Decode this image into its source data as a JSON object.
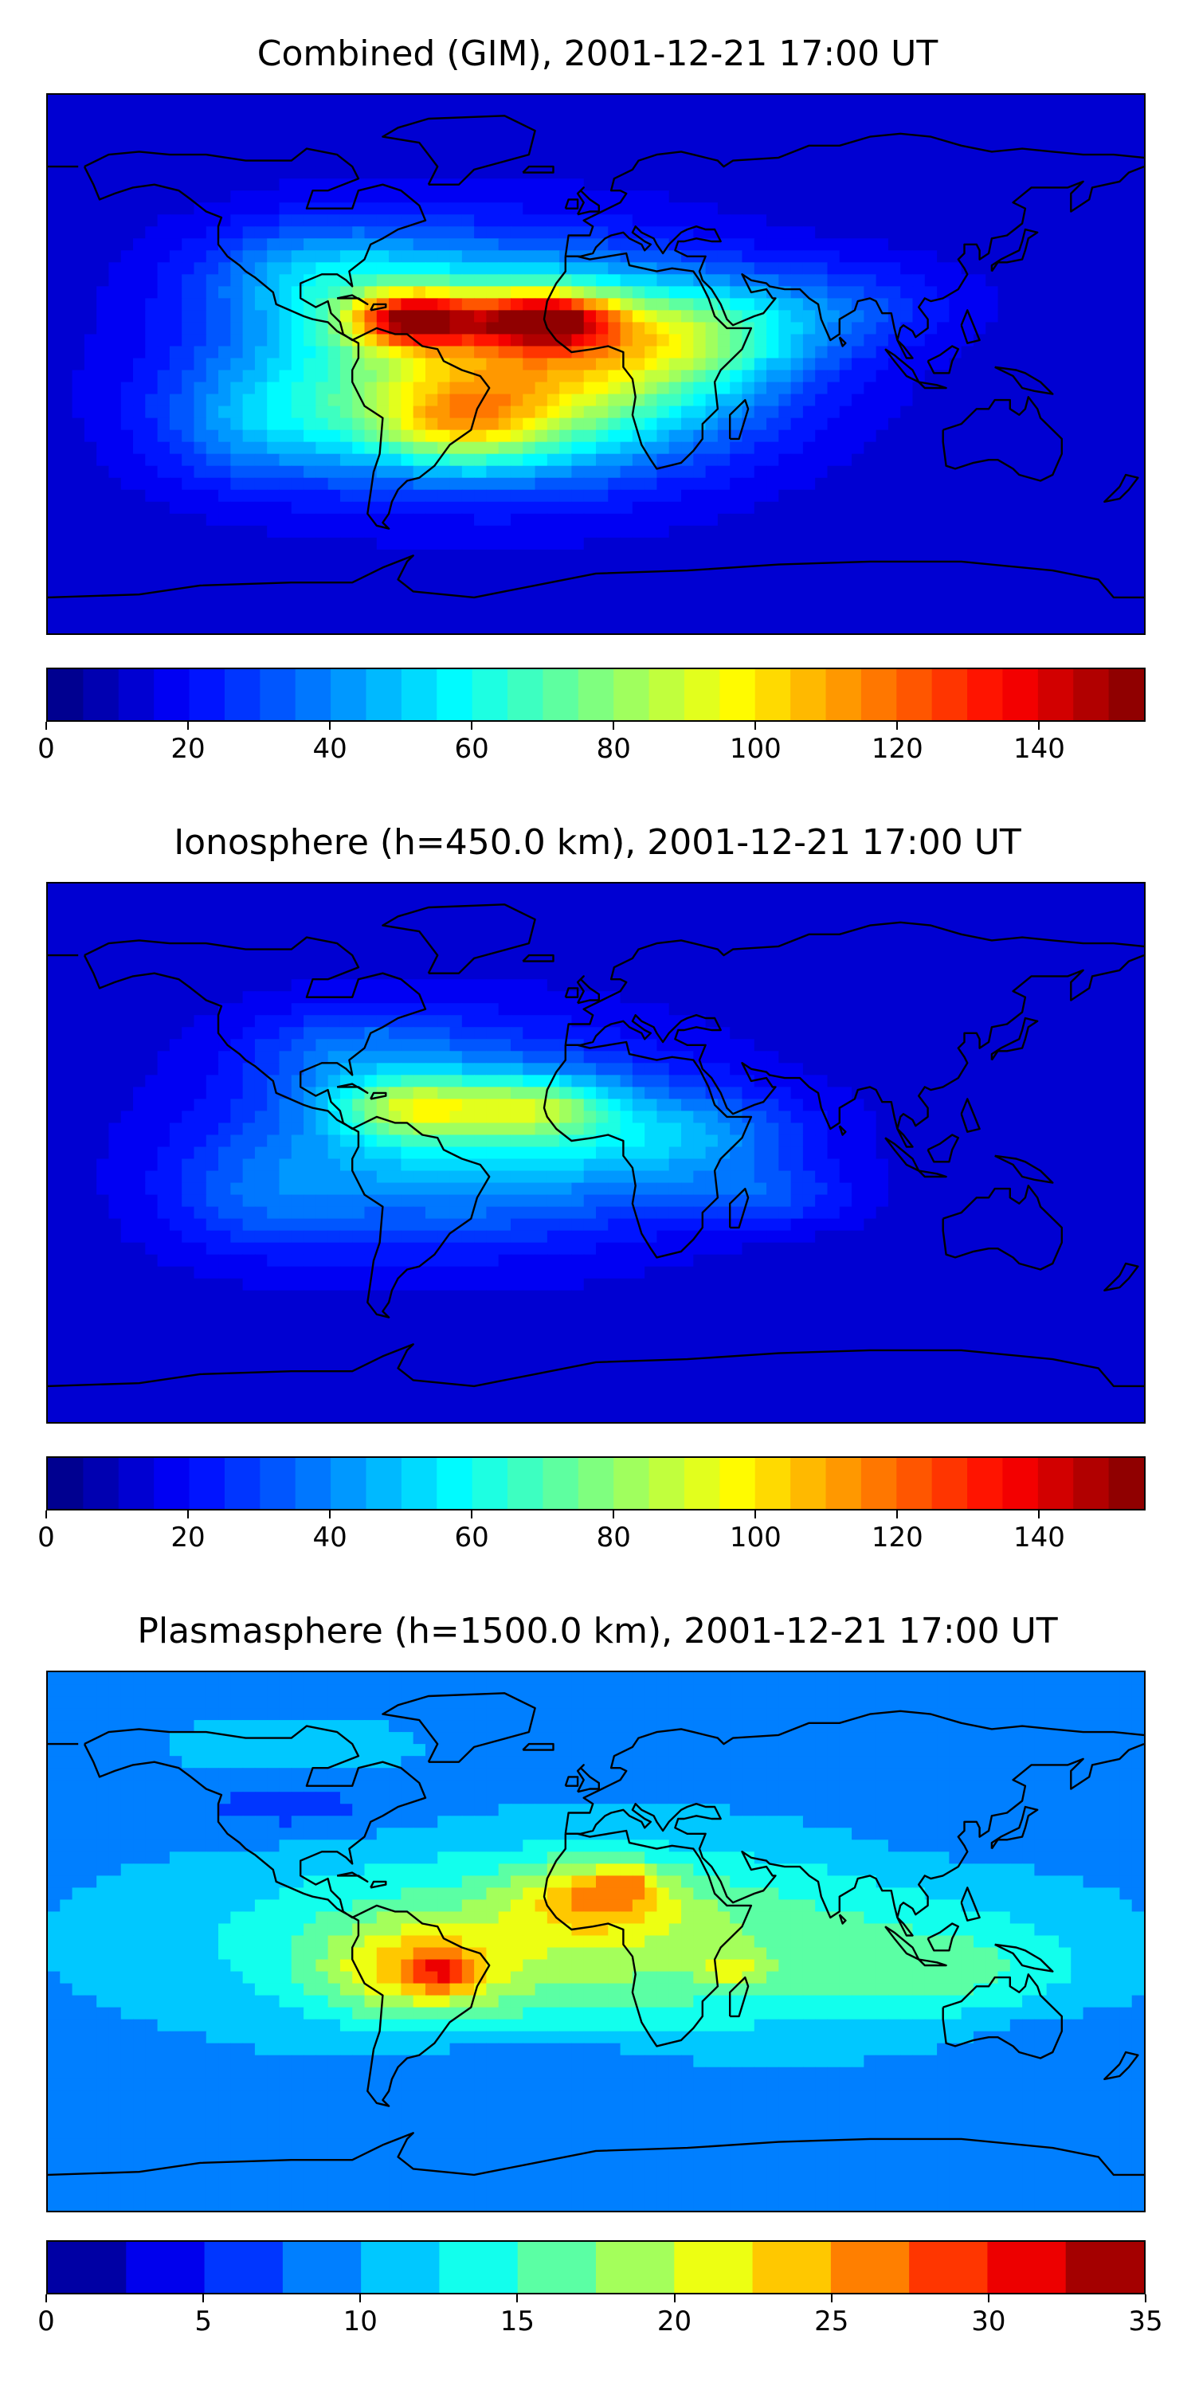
{
  "panels": [
    {
      "title": "Combined (GIM), 2001-12-21 17:00 UT",
      "colorbar": {
        "min": 0,
        "max": 155,
        "step": 5,
        "ticks": [
          "0",
          "20",
          "40",
          "60",
          "80",
          "100",
          "120",
          "140"
        ],
        "tick_values": [
          0,
          20,
          40,
          60,
          80,
          100,
          120,
          140
        ]
      },
      "field": {
        "background": 12,
        "blobs": [
          {
            "lon": -45,
            "lat": 0,
            "value": 58,
            "rlon": 70,
            "rlat": 35
          },
          {
            "lon": 0,
            "lat": 0,
            "value": 45,
            "rlon": 60,
            "rlat": 30
          },
          {
            "lon": -60,
            "lat": 15,
            "value": 85,
            "rlon": 20,
            "rlat": 9
          },
          {
            "lon": -18,
            "lat": 15,
            "value": 80,
            "rlon": 22,
            "rlat": 9
          },
          {
            "lon": -45,
            "lat": -20,
            "value": 42,
            "rlon": 30,
            "rlat": 14
          },
          {
            "lon": -90,
            "lat": 30,
            "value": 25,
            "rlon": 40,
            "rlat": 18
          },
          {
            "lon": 30,
            "lat": 10,
            "value": 30,
            "rlon": 40,
            "rlat": 15
          },
          {
            "lon": -110,
            "lat": -20,
            "value": 22,
            "rlon": 35,
            "rlat": 20
          },
          {
            "lon": 80,
            "lat": 20,
            "value": 15,
            "rlon": 40,
            "rlat": 15
          }
        ]
      }
    },
    {
      "title": "Ionosphere  (h=450.0 km), 2001-12-21 17:00 UT",
      "colorbar": {
        "min": 0,
        "max": 155,
        "step": 5,
        "ticks": [
          "0",
          "20",
          "40",
          "60",
          "80",
          "100",
          "120",
          "140"
        ],
        "tick_values": [
          0,
          20,
          40,
          60,
          80,
          100,
          120,
          140
        ]
      },
      "field": {
        "background": 12,
        "blobs": [
          {
            "lon": -40,
            "lat": 5,
            "value": 42,
            "rlon": 70,
            "rlat": 32
          },
          {
            "lon": -60,
            "lat": 15,
            "value": 45,
            "rlon": 25,
            "rlat": 10
          },
          {
            "lon": -20,
            "lat": 15,
            "value": 38,
            "rlon": 25,
            "rlat": 10
          },
          {
            "lon": -80,
            "lat": 35,
            "value": 15,
            "rlon": 35,
            "rlat": 15
          },
          {
            "lon": 30,
            "lat": 5,
            "value": 22,
            "rlon": 40,
            "rlat": 15
          },
          {
            "lon": 55,
            "lat": -15,
            "value": 15,
            "rlon": 30,
            "rlat": 10
          },
          {
            "lon": -110,
            "lat": -15,
            "value": 15,
            "rlon": 35,
            "rlat": 20
          }
        ]
      }
    },
    {
      "title": "Plasmasphere (h=1500.0 km), 2001-12-21 17:00 UT",
      "colorbar": {
        "min": 0,
        "max": 35,
        "step": 2.5,
        "ticks": [
          "0",
          "5",
          "10",
          "15",
          "20",
          "25",
          "30",
          "35"
        ],
        "tick_values": [
          0,
          5,
          10,
          15,
          20,
          25,
          30,
          35
        ]
      },
      "field": {
        "background": 9,
        "blobs": [
          {
            "lon": 0,
            "lat": 0,
            "value": 10,
            "rlon": 120,
            "rlat": 30
          },
          {
            "lon": -60,
            "lat": -10,
            "value": 9,
            "rlon": 30,
            "rlat": 15
          },
          {
            "lon": -50,
            "lat": -10,
            "value": 7,
            "rlon": 10,
            "rlat": 7
          },
          {
            "lon": 0,
            "lat": 15,
            "value": 9,
            "rlon": 25,
            "rlat": 12
          },
          {
            "lon": 10,
            "lat": 20,
            "value": 5,
            "rlon": 10,
            "rlat": 5
          },
          {
            "lon": 45,
            "lat": -10,
            "value": 5,
            "rlon": 10,
            "rlat": 5
          },
          {
            "lon": 120,
            "lat": -10,
            "value": 4,
            "rlon": 40,
            "rlat": 15
          },
          {
            "lon": -100,
            "lat": 45,
            "value": -3,
            "rlon": 35,
            "rlat": 10
          },
          {
            "lon": -20,
            "lat": -40,
            "value": -3,
            "rlon": 40,
            "rlat": 8
          },
          {
            "lon": 130,
            "lat": 40,
            "value": -2,
            "rlon": 40,
            "rlat": 12
          },
          {
            "lon": -100,
            "lat": 65,
            "value": 3,
            "rlon": 40,
            "rlat": 10
          },
          {
            "lon": 150,
            "lat": -35,
            "value": -2,
            "rlon": 25,
            "rlat": 10
          }
        ]
      }
    }
  ],
  "colors": {
    "jet": [
      "#00007f",
      "#0000ff",
      "#007fff",
      "#00ffff",
      "#7fff7f",
      "#ffff00",
      "#ff7f00",
      "#ff0000",
      "#7f0000"
    ],
    "coast": "#000000"
  }
}
